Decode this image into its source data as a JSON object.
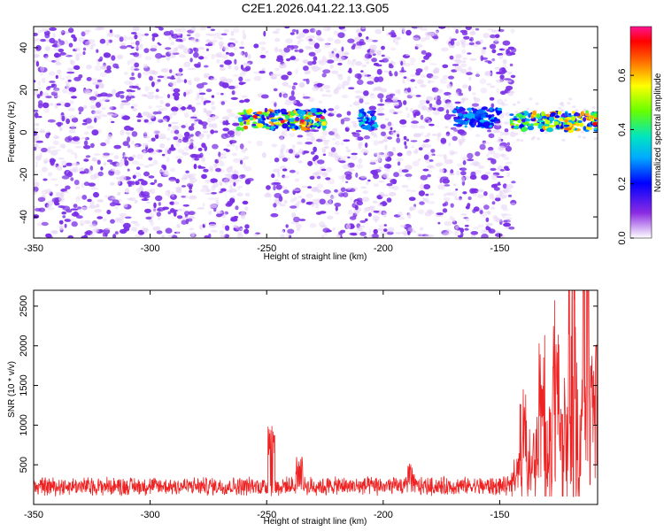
{
  "title": "C2E1.2026.041.22.13.G05",
  "colors": {
    "heat_low": "#e6d4f5",
    "heat_mid": "#7a2fe6",
    "snr_line": "#ee2222",
    "background": "#ffffff"
  },
  "chart_data": [
    {
      "type": "heatmap",
      "title": "C2E1.2026.041.22.13.G05",
      "xlabel": "Height of straight line (km)",
      "ylabel": "Frequency (Hz)",
      "xlim": [
        -350,
        -108
      ],
      "ylim": [
        -50,
        50
      ],
      "x_ticks": [
        -350,
        -300,
        -250,
        -200,
        -150
      ],
      "y_ticks": [
        -40,
        -20,
        0,
        20,
        40
      ],
      "colorbar": {
        "label": "Normalized spectral amplitude",
        "range": [
          0.0,
          0.78
        ],
        "ticks": [
          0.0,
          0.2,
          0.4,
          0.6
        ]
      },
      "noise_region": [
        -350,
        -144
      ],
      "gap_region": [
        -258,
        -247
      ],
      "signal_bands": [
        {
          "x_start": -262,
          "x_end": -225,
          "freq": 6,
          "peak_amplitude": 0.78
        },
        {
          "x_start": -210,
          "x_end": -203,
          "freq": 6,
          "peak_amplitude": 0.35
        },
        {
          "x_start": -170,
          "x_end": -150,
          "freq": 7,
          "peak_amplitude": 0.3
        },
        {
          "x_start": -145,
          "x_end": -108,
          "freq": 5,
          "peak_amplitude": 0.78
        }
      ]
    },
    {
      "type": "line",
      "xlabel": "Height of straight line (km)",
      "ylabel": "SNR (10 * v/v)",
      "xlim": [
        -350,
        -108
      ],
      "ylim": [
        0,
        2700
      ],
      "x_ticks": [
        -350,
        -300,
        -250,
        -200,
        -150
      ],
      "y_ticks": [
        500,
        1000,
        1500,
        2000,
        2500
      ],
      "series": [
        {
          "name": "SNR",
          "baseline": 200,
          "noise_amplitude": 100,
          "features": [
            {
              "x": -248,
              "value": 990
            },
            {
              "x": -236,
              "value": 620
            },
            {
              "x": -188,
              "value": 560
            },
            {
              "x": -140,
              "value": 1200
            },
            {
              "x": -132,
              "value": 1450
            },
            {
              "x": -126,
              "value": 1700
            },
            {
              "x": -119,
              "value": 2200
            },
            {
              "x": -113,
              "value": 2700
            }
          ]
        }
      ]
    }
  ]
}
